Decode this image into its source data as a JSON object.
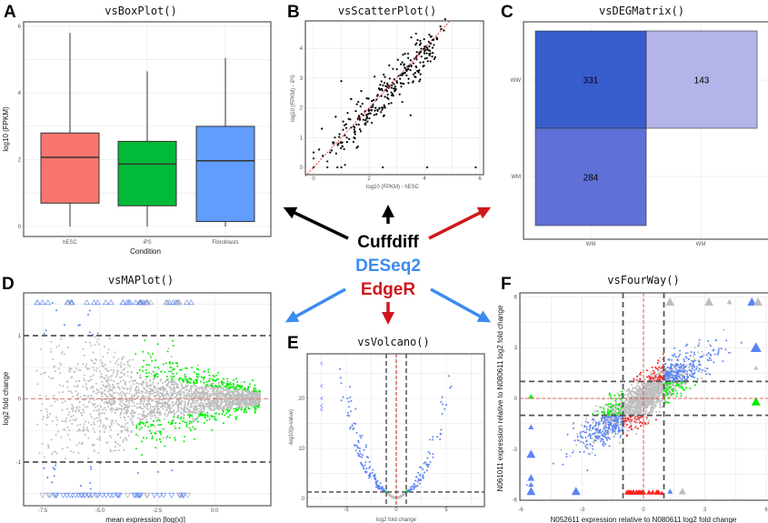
{
  "packages": [
    {
      "name": "Cuffdiff",
      "color": "#000000"
    },
    {
      "name": "DESeq2",
      "color": "#3d8bf0"
    },
    {
      "name": "EdgeR",
      "color": "#d0161b"
    }
  ],
  "chart_data": [
    {
      "panel": "A",
      "title": "vsBoxPlot()",
      "type": "box",
      "xlabel": "Condition",
      "ylabel": "log10 (FPKM)",
      "categories": [
        "hESC",
        "iPS",
        "Fibroblasts"
      ],
      "colors": [
        "#f8766d",
        "#00ba38",
        "#619cff"
      ],
      "ylim": [
        0,
        6
      ],
      "yticks": [
        "0",
        "2",
        "4",
        "6"
      ],
      "boxes": [
        {
          "min": 0,
          "q1": 0.7,
          "median": 2.07,
          "q3": 2.8,
          "max": 5.8
        },
        {
          "min": 0,
          "q1": 0.62,
          "median": 1.87,
          "q3": 2.55,
          "max": 4.65
        },
        {
          "min": 0,
          "q1": 0.15,
          "median": 1.97,
          "q3": 3.0,
          "max": 5.05
        }
      ],
      "grid": true
    },
    {
      "panel": "B",
      "title": "vsScatterPlot()",
      "type": "scatter",
      "xlabel": "log10 (FPKM) - hESC",
      "ylabel": "log10 (FPKM) - iPS",
      "xlim": [
        0,
        6
      ],
      "ylim": [
        0,
        4.7
      ],
      "xticks": [
        "0",
        "2",
        "4",
        "6"
      ],
      "yticks": [
        "0",
        "1",
        "2",
        "3",
        "4"
      ],
      "reference_line": {
        "slope": 1,
        "intercept": 0,
        "color": "#e41a1c"
      },
      "points": [
        [
          0,
          0
        ],
        [
          0,
          0.3
        ],
        [
          0,
          0.5
        ],
        [
          0.5,
          0
        ],
        [
          1,
          0
        ],
        [
          2.5,
          0
        ],
        [
          4.1,
          0
        ],
        [
          5.85,
          0
        ],
        [
          0.3,
          1.3
        ],
        [
          1,
          2.9
        ],
        [
          1.35,
          2.3
        ],
        [
          0.8,
          1.7
        ],
        [
          1.8,
          1.75
        ],
        [
          2.2,
          3.05
        ],
        [
          2.3,
          2.4
        ],
        [
          2.6,
          2.6
        ],
        [
          2.9,
          2.8
        ],
        [
          3.0,
          2.9
        ],
        [
          3.2,
          3.1
        ],
        [
          3.4,
          3.3
        ],
        [
          3.5,
          3.6
        ],
        [
          3.6,
          3.5
        ],
        [
          3.7,
          3.7
        ],
        [
          4.0,
          3.9
        ],
        [
          4.3,
          3.85
        ],
        [
          4.45,
          4.35
        ],
        [
          4.6,
          4.65
        ],
        [
          4.7,
          4.6
        ],
        [
          2.0,
          1.9
        ],
        [
          1.8,
          1.6
        ],
        [
          1.5,
          1.2
        ],
        [
          1.2,
          1.0
        ],
        [
          0.9,
          0.8
        ],
        [
          0.6,
          0.5
        ],
        [
          2.5,
          2.0
        ],
        [
          2.7,
          2.3
        ],
        [
          3.2,
          2.2
        ],
        [
          3.5,
          1.75
        ],
        [
          2.1,
          1.5
        ],
        [
          1.6,
          0.7
        ],
        [
          0.5,
          0.2
        ],
        [
          0.2,
          0.6
        ]
      ],
      "grid": true
    },
    {
      "panel": "C",
      "title": "vsDEGMatrix()",
      "type": "heatmap",
      "x_categories": [
        "WM",
        "WM"
      ],
      "y_categories": [
        "WW",
        "WM"
      ],
      "cells": [
        {
          "row": "WW",
          "col": 0,
          "value": 331,
          "color": "#385dcc"
        },
        {
          "row": "WW",
          "col": 1,
          "value": 143,
          "color": "#b4b4ea"
        },
        {
          "row": "WM",
          "col": 0,
          "value": 284,
          "color": "#6070d6"
        }
      ]
    },
    {
      "panel": "D",
      "title": "vsMAPlot()",
      "type": "scatter",
      "xlabel": "mean expression [log(x)]",
      "ylabel": "log2 fold change",
      "xlim": [
        -8.3,
        2.3
      ],
      "ylim": [
        -1.65,
        1.65
      ],
      "xticks": [
        "-7.5",
        "-5.0",
        "-2.5",
        "0.0"
      ],
      "yticks": [
        "-1",
        "0",
        "1"
      ],
      "thresholds": {
        "fold_change": [
          -1,
          1
        ],
        "center": 0
      },
      "point_colors": {
        "not_significant": "#bebebe",
        "significant": "#00ee00",
        "beyond_threshold": "#5b84f5"
      },
      "grid": true
    },
    {
      "panel": "E",
      "title": "vsVolcano()",
      "type": "scatter",
      "xlabel": "log2 fold change",
      "ylabel": "-log10(p-value)",
      "xlim": [
        -8.5,
        8.5
      ],
      "ylim": [
        -1,
        29
      ],
      "xticks": [
        "-5",
        "0",
        "5"
      ],
      "yticks": [
        "0",
        "10",
        "20"
      ],
      "thresholds": {
        "fold_change": [
          -1,
          1
        ],
        "p_value_line": 1.3
      },
      "point_colors": {
        "not_significant": "#bebebe",
        "significant": "#00ee00",
        "beyond_threshold": "#5b84f5"
      },
      "grid": true
    },
    {
      "panel": "F",
      "title": "vsFourWay()",
      "type": "scatter",
      "xlabel": "N052611 expression relative to N080611 log2 fold change",
      "ylabel": "N061011 expression relative to N080611 log2 fold change",
      "xlim": [
        -6,
        6
      ],
      "ylim": [
        -6,
        6
      ],
      "xticks": [
        "-6",
        "-3",
        "0",
        "3",
        "6"
      ],
      "yticks": [
        "-6",
        "-3",
        "0",
        "3",
        "6"
      ],
      "thresholds": {
        "x": [
          -1,
          1
        ],
        "y": [
          -1,
          1
        ]
      },
      "point_colors": {
        "neither": "#bebebe",
        "x_only": "#00ee00",
        "y_only": "#ff2020",
        "both": "#5b84f5"
      },
      "grid": true
    }
  ]
}
